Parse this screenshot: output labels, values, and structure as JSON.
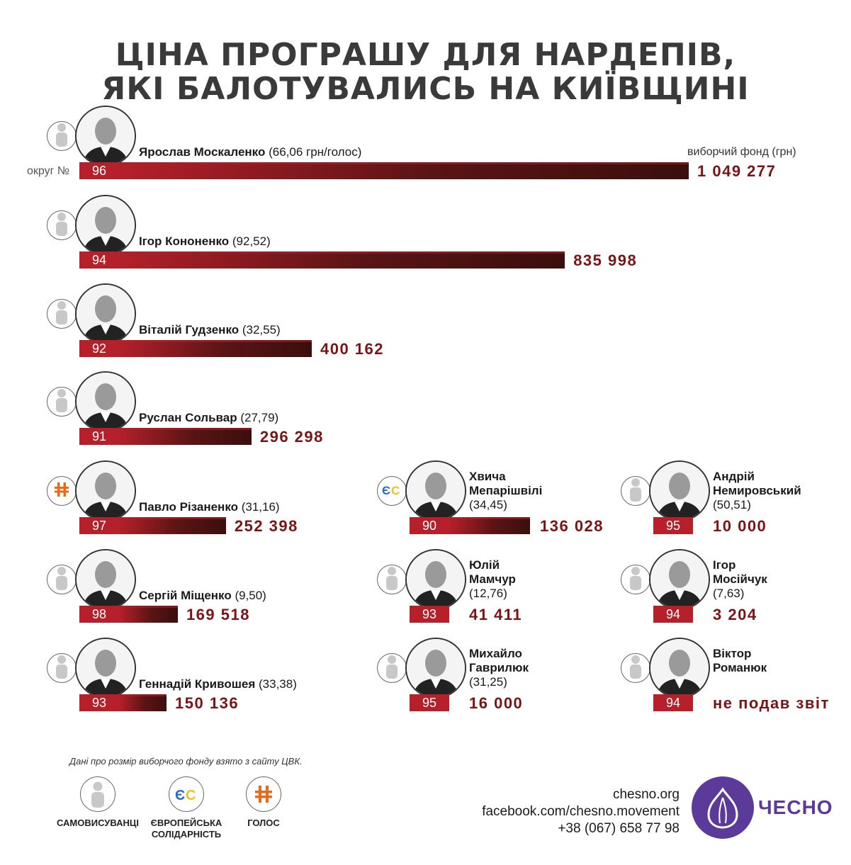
{
  "title_line1": "ЦІНА ПРОГРАШУ ДЛЯ НАРДЕПІВ,",
  "title_line2": "ЯКІ БАЛОТУВАЛИСЬ НА КИЇВЩИНІ",
  "district_label": "округ №",
  "fund_label": "виборчий фонд (грн)",
  "source_note": "Дані про розмір виборчого фонду взято з сайту ЦВК.",
  "legend": [
    {
      "label": "САМОВИСУВАНЦІ",
      "icon": "person-icon"
    },
    {
      "label": "ЄВРОПЕЙСЬКА СОЛІДАРНІСТЬ",
      "icon": "es-party-icon"
    },
    {
      "label": "ГОЛОС",
      "icon": "holos-party-icon"
    }
  ],
  "contacts": {
    "site": "chesno.org",
    "facebook": "facebook.com/chesno.movement",
    "phone": "+38 (067) 658 77 98"
  },
  "logo_text": "ЧЕСНО",
  "colors": {
    "bar_start": "#b5202a",
    "bar_end": "#3a0f0c",
    "value": "#7a1416",
    "logo": "#5c3a9a"
  },
  "chart_data": {
    "type": "bar",
    "value_unit": "грн",
    "items": [
      {
        "name": "Ярослав  Москаленко",
        "ratio": "(66,06 грн/голос)",
        "district": "96",
        "value": 1049277,
        "value_text": "1 049 277",
        "party": "self"
      },
      {
        "name": "Ігор Кононенко",
        "ratio": "(92,52)",
        "district": "94",
        "value": 835998,
        "value_text": "835 998",
        "party": "self"
      },
      {
        "name": "Віталій Гудзенко",
        "ratio": "(32,55)",
        "district": "92",
        "value": 400162,
        "value_text": "400 162",
        "party": "self"
      },
      {
        "name": "Руслан Сольвар",
        "ratio": "(27,79)",
        "district": "91",
        "value": 296298,
        "value_text": "296 298",
        "party": "self"
      },
      {
        "name": "Павло Різаненко",
        "ratio": "(31,16)",
        "district": "97",
        "value": 252398,
        "value_text": "252 398",
        "party": "holos"
      },
      {
        "name": "Сергій Міщенко",
        "ratio": "(9,50)",
        "district": "98",
        "value": 169518,
        "value_text": "169 518",
        "party": "self"
      },
      {
        "name": "Геннадій Кривошея",
        "ratio": "(33,38)",
        "district": "93",
        "value": 150136,
        "value_text": "150 136",
        "party": "self"
      },
      {
        "name_line1": "Хвича",
        "name_line2": "Мепарішвілі",
        "ratio": "(34,45)",
        "district": "90",
        "value": 136028,
        "value_text": "136 028",
        "party": "es"
      },
      {
        "name_line1": "Юлій",
        "name_line2": "Мамчур",
        "ratio": "(12,76)",
        "district": "93",
        "value": 41411,
        "value_text": "41 411",
        "party": "self"
      },
      {
        "name_line1": "Михайло",
        "name_line2": "Гаврилюк",
        "ratio": "(31,25)",
        "district": "95",
        "value": 16000,
        "value_text": "16 000",
        "party": "self"
      },
      {
        "name_line1": "Андрій",
        "name_line2": "Немировський",
        "ratio": "(50,51)",
        "district": "95",
        "value": 10000,
        "value_text": "10 000",
        "party": "self"
      },
      {
        "name_line1": "Ігор",
        "name_line2": "Мосійчук",
        "ratio": "(7,63)",
        "district": "94",
        "value": 3204,
        "value_text": "3 204",
        "party": "self"
      },
      {
        "name_line1": "Віктор",
        "name_line2": "Романюк",
        "ratio": "",
        "district": "94",
        "value": null,
        "value_text": "не подав звіт",
        "party": "self"
      }
    ]
  }
}
